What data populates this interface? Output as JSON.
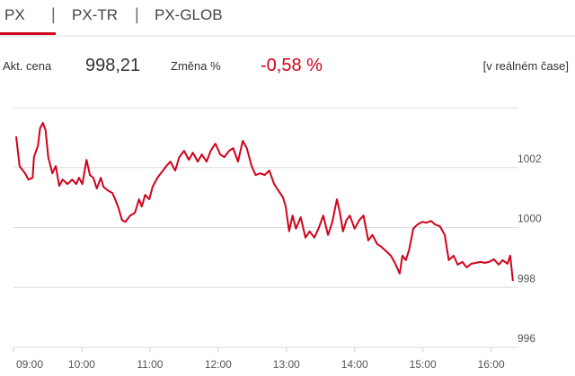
{
  "tabs": [
    "PX",
    "PX-TR",
    "PX-GLOB"
  ],
  "quote": {
    "price_label": "Akt. cena",
    "price": "998,21",
    "change_label": "Změna %",
    "change": "-0,58 %",
    "mode": "[v reálném čase]"
  },
  "chart_data": {
    "type": "line",
    "x": [
      9.04,
      9.09,
      9.17,
      9.22,
      9.28,
      9.3,
      9.36,
      9.39,
      9.43,
      9.47,
      9.51,
      9.57,
      9.62,
      9.67,
      9.72,
      9.79,
      9.86,
      9.92,
      9.96,
      10.01,
      10.07,
      10.12,
      10.17,
      10.22,
      10.28,
      10.32,
      10.38,
      10.45,
      10.49,
      10.54,
      10.59,
      10.64,
      10.71,
      10.78,
      10.84,
      10.88,
      10.93,
      10.99,
      11.04,
      11.11,
      11.17,
      11.24,
      11.3,
      11.37,
      11.43,
      11.5,
      11.57,
      11.63,
      11.7,
      11.76,
      11.83,
      11.89,
      11.96,
      12.03,
      12.09,
      12.16,
      12.22,
      12.29,
      12.36,
      12.42,
      12.49,
      12.55,
      12.62,
      12.68,
      12.75,
      12.82,
      12.88,
      12.95,
      12.99,
      13.04,
      13.09,
      13.14,
      13.21,
      13.28,
      13.34,
      13.41,
      13.47,
      13.54,
      13.61,
      13.67,
      13.74,
      13.78,
      13.83,
      13.88,
      13.93,
      14.0,
      14.07,
      14.13,
      14.2,
      14.26,
      14.33,
      14.39,
      14.46,
      14.53,
      14.59,
      14.66,
      14.7,
      14.75,
      14.8,
      14.86,
      14.92,
      14.99,
      15.05,
      15.12,
      15.18,
      15.25,
      15.32,
      15.38,
      15.45,
      15.51,
      15.58,
      15.64,
      15.71,
      15.78,
      15.84,
      15.91,
      15.97,
      16.04,
      16.11,
      16.17,
      16.24,
      16.28,
      16.32
    ],
    "series": [
      {
        "color": "#d0021b",
        "values": [
          1003.04,
          1002.05,
          1001.81,
          1001.6,
          1001.66,
          1002.35,
          1002.74,
          1003.31,
          1003.49,
          1003.25,
          1002.35,
          1001.81,
          1002.05,
          1001.39,
          1001.6,
          1001.45,
          1001.6,
          1001.45,
          1001.66,
          1001.45,
          1002.26,
          1001.75,
          1001.66,
          1001.3,
          1001.66,
          1001.36,
          1001.24,
          1001.15,
          1000.94,
          1000.64,
          1000.25,
          1000.19,
          1000.4,
          1000.49,
          1000.94,
          1000.7,
          1001.09,
          1000.94,
          1001.36,
          1001.66,
          1001.84,
          1002.05,
          1002.2,
          1001.9,
          1002.35,
          1002.56,
          1002.26,
          1002.5,
          1002.2,
          1002.44,
          1002.2,
          1002.56,
          1002.8,
          1002.44,
          1002.35,
          1002.56,
          1002.65,
          1002.2,
          1002.89,
          1002.65,
          1002.05,
          1001.75,
          1001.81,
          1001.75,
          1001.9,
          1001.45,
          1001.24,
          1001.0,
          1000.7,
          999.87,
          1000.4,
          999.96,
          1000.34,
          999.66,
          999.87,
          999.66,
          999.96,
          1000.4,
          999.75,
          1000.16,
          1000.94,
          1000.55,
          999.87,
          1000.25,
          1000.4,
          999.96,
          1000.25,
          1000.4,
          999.57,
          999.75,
          999.45,
          999.36,
          999.21,
          999.06,
          998.82,
          998.46,
          999.06,
          998.91,
          999.27,
          999.96,
          1000.1,
          1000.19,
          1000.16,
          1000.22,
          1000.1,
          1000.04,
          999.75,
          998.91,
          999.06,
          998.76,
          998.85,
          998.67,
          998.79,
          998.82,
          998.85,
          998.82,
          998.85,
          998.94,
          998.76,
          998.91,
          998.79,
          999.06,
          998.21
        ]
      }
    ],
    "xlim": [
      9,
      16.4
    ],
    "xticks": [
      {
        "value": 9,
        "label": "09:00"
      },
      {
        "value": 10,
        "label": "10:00"
      },
      {
        "value": 11,
        "label": "11:00"
      },
      {
        "value": 12,
        "label": "12:00"
      },
      {
        "value": 13,
        "label": "13:00"
      },
      {
        "value": 14,
        "label": "14:00"
      },
      {
        "value": 15,
        "label": "15:00"
      },
      {
        "value": 16,
        "label": "16:00"
      }
    ],
    "ylim": [
      996,
      1004
    ],
    "yticks": [
      996,
      998,
      1000,
      1002
    ],
    "grid": true
  }
}
